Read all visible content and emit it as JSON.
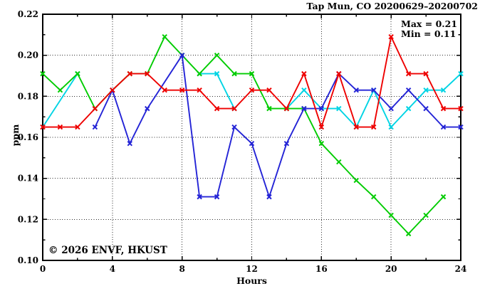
{
  "title": "Tap Mun, CO 20200629–20200702",
  "annotation": {
    "max_label": "Max = 0.21",
    "min_label": "Min = 0.11"
  },
  "watermark": "© 2026 ENVF, HKUST",
  "axes": {
    "x": {
      "label": "Hours",
      "min": 0,
      "max": 24,
      "major_ticks": [
        0,
        4,
        8,
        12,
        16,
        20,
        24
      ],
      "tick_labels": [
        "0",
        "4",
        "8",
        "12",
        "16",
        "20",
        "24"
      ],
      "minor_ticks": [
        2,
        6,
        10,
        14,
        18,
        22
      ],
      "grid_at": [
        4,
        8,
        12,
        16,
        20
      ]
    },
    "y": {
      "label": "ppm",
      "min": 0.1,
      "max": 0.22,
      "major_ticks": [
        0.1,
        0.12,
        0.14,
        0.16,
        0.18,
        0.2,
        0.22
      ],
      "tick_labels": [
        "0.10",
        "0.12",
        "0.14",
        "0.16",
        "0.18",
        "0.20",
        "0.22"
      ],
      "minor_ticks": [
        0.11,
        0.13,
        0.15,
        0.17,
        0.19,
        0.21
      ],
      "grid_at": [
        0.12,
        0.14,
        0.16,
        0.18,
        0.2
      ]
    }
  },
  "chart_data": {
    "type": "line",
    "title": "Tap Mun, CO 20200629–20200702",
    "xlabel": "Hours",
    "ylabel": "ppm",
    "xlim": [
      0,
      24
    ],
    "ylim": [
      0.1,
      0.22
    ],
    "grid": true,
    "legend_position": "none",
    "max_value": 0.21,
    "min_value": 0.11,
    "marker": "x-cross",
    "x": [
      0,
      1,
      2,
      3,
      4,
      5,
      6,
      7,
      8,
      9,
      10,
      11,
      12,
      13,
      14,
      15,
      16,
      17,
      18,
      19,
      20,
      21,
      22,
      23,
      24
    ],
    "series": [
      {
        "name": "cyan",
        "color": "#00d4e4",
        "values": [
          0.165,
          0.178,
          0.191,
          null,
          null,
          null,
          null,
          null,
          null,
          0.191,
          0.191,
          0.174,
          null,
          null,
          0.174,
          0.183,
          0.174,
          0.174,
          0.165,
          0.183,
          0.165,
          0.174,
          0.183,
          0.183,
          0.191
        ],
        "no_marker_at_x": [
          1
        ]
      },
      {
        "name": "green",
        "color": "#00cc00",
        "values": [
          0.191,
          0.183,
          0.191,
          0.174,
          0.183,
          0.191,
          0.191,
          0.209,
          0.2,
          0.191,
          0.2,
          0.191,
          0.191,
          0.174,
          0.174,
          0.174,
          0.157,
          0.148,
          0.139,
          0.131,
          0.122,
          0.113,
          0.122,
          0.131,
          null
        ],
        "no_marker_at_x": []
      },
      {
        "name": "blue",
        "color": "#2424d6",
        "values": [
          null,
          null,
          null,
          0.165,
          0.183,
          0.157,
          0.174,
          0.187,
          0.2,
          0.131,
          0.131,
          0.165,
          0.157,
          0.131,
          0.157,
          0.174,
          0.174,
          0.191,
          0.183,
          0.183,
          0.174,
          0.183,
          0.174,
          0.165,
          0.165
        ],
        "no_marker_at_x": [
          7
        ]
      },
      {
        "name": "red",
        "color": "#ee0000",
        "values": [
          0.165,
          0.165,
          0.165,
          0.174,
          0.183,
          0.191,
          0.191,
          0.183,
          0.183,
          0.183,
          0.174,
          0.174,
          0.183,
          0.183,
          0.174,
          0.191,
          0.165,
          0.191,
          0.165,
          0.165,
          0.209,
          0.191,
          0.191,
          0.174,
          0.174
        ],
        "no_marker_at_x": []
      }
    ]
  },
  "colors": {
    "frame": "#000000",
    "grid": "#2a2a2a",
    "watermark": "#cbcfd0",
    "background": "#ffffff"
  }
}
